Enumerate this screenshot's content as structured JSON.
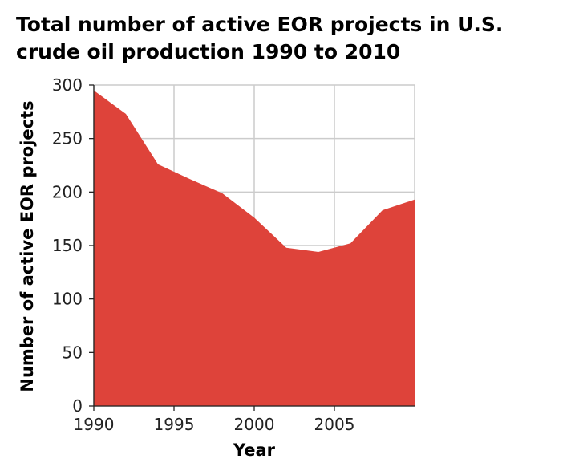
{
  "chart_data": {
    "type": "area",
    "title": "Total number of active EOR projects in U.S. crude oil production 1990 to 2010",
    "title_lines": [
      "Total number of active EOR projects in U.S.",
      "crude oil production 1990 to 2010"
    ],
    "xlabel": "Year",
    "ylabel": "Number of active EOR projects",
    "x": [
      1990,
      1992,
      1994,
      1996,
      1998,
      2000,
      2002,
      2004,
      2006,
      2008,
      2010
    ],
    "values": [
      295,
      273,
      226,
      212,
      199,
      176,
      148,
      144,
      152,
      183,
      193
    ],
    "xlim": [
      1990,
      2010
    ],
    "ylim": [
      0,
      300
    ],
    "xticks": [
      1990,
      1995,
      2000,
      2005
    ],
    "yticks": [
      0,
      50,
      100,
      150,
      200,
      250,
      300
    ],
    "grid": true,
    "fill_color": "#de433a",
    "grid_color": "#cccccc"
  }
}
